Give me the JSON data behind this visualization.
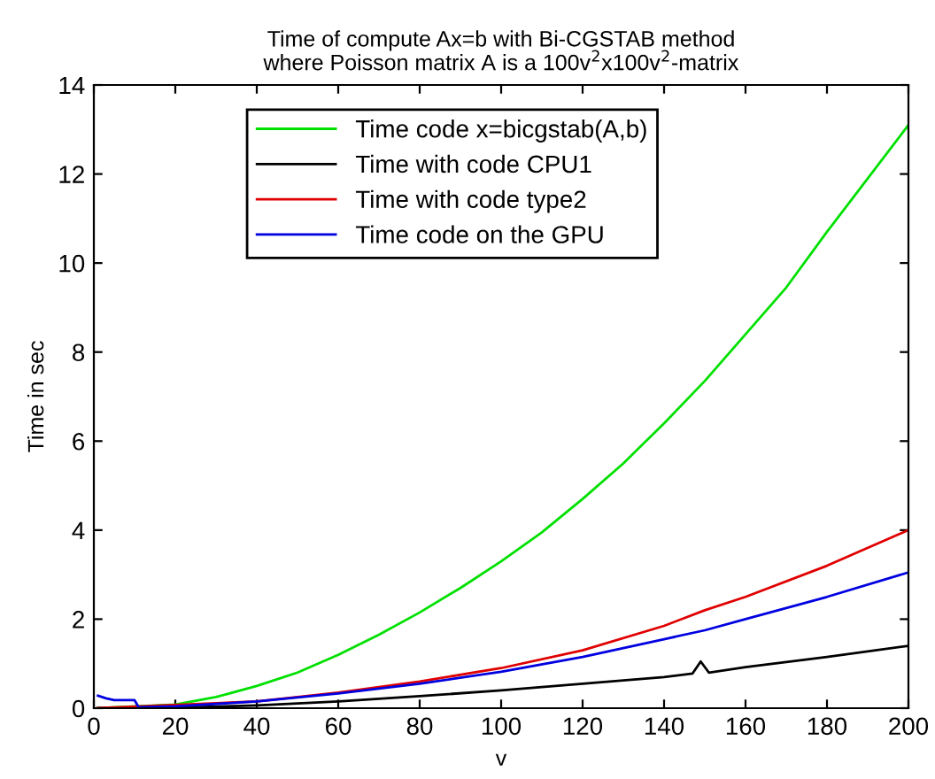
{
  "chart_data": {
    "type": "line",
    "title": "Time of compute Ax=b with Bi-CGSTAB method\nwhere Poisson matrix A is a 100v$^{2}$x100v$^{2}$-matrix",
    "xlabel": "v",
    "ylabel": "Time in sec",
    "xlim": [
      0,
      200
    ],
    "ylim": [
      0,
      14
    ],
    "xticks": [
      0,
      20,
      40,
      60,
      80,
      100,
      120,
      140,
      160,
      180,
      200
    ],
    "yticks": [
      0,
      2,
      4,
      6,
      8,
      10,
      12,
      14
    ],
    "grid": false,
    "legend": "top",
    "series": [
      {
        "name": "Time code x=bicgstab(A,b)",
        "color": "#00e000",
        "x": [
          1,
          20,
          30,
          40,
          50,
          60,
          70,
          80,
          90,
          100,
          110,
          120,
          130,
          140,
          150,
          160,
          170,
          180,
          190,
          200
        ],
        "values": [
          0,
          0.08,
          0.25,
          0.5,
          0.8,
          1.2,
          1.65,
          2.15,
          2.7,
          3.3,
          3.95,
          4.7,
          5.5,
          6.4,
          7.35,
          8.4,
          9.45,
          10.7,
          11.9,
          13.1
        ]
      },
      {
        "name": "Time with code CPU1",
        "color": "#000000",
        "x": [
          1,
          20,
          40,
          60,
          80,
          100,
          120,
          140,
          147,
          149,
          151,
          160,
          180,
          200
        ],
        "values": [
          0,
          0.01,
          0.06,
          0.15,
          0.27,
          0.4,
          0.55,
          0.7,
          0.78,
          1.05,
          0.8,
          0.92,
          1.15,
          1.4
        ]
      },
      {
        "name": "Time with code type2",
        "color": "#e00000",
        "x": [
          1,
          40,
          60,
          80,
          100,
          120,
          140,
          150,
          160,
          180,
          200
        ],
        "values": [
          0,
          0.15,
          0.35,
          0.6,
          0.9,
          1.3,
          1.85,
          2.2,
          2.5,
          3.2,
          4.0
        ]
      },
      {
        "name": "Time code on the GPU",
        "color": "#0000e0",
        "x": [
          1,
          3,
          5,
          10,
          11,
          20,
          40,
          60,
          80,
          100,
          120,
          140,
          150,
          160,
          180,
          200
        ],
        "values": [
          0.28,
          0.22,
          0.18,
          0.18,
          0.02,
          0.04,
          0.15,
          0.33,
          0.55,
          0.82,
          1.15,
          1.55,
          1.75,
          2.0,
          2.5,
          3.05
        ]
      }
    ]
  }
}
